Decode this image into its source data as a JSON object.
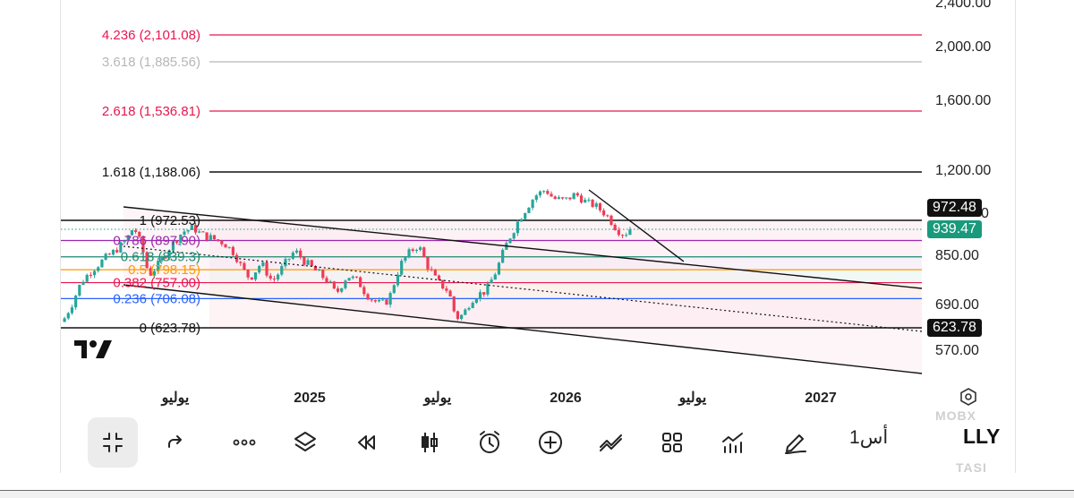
{
  "price_axis": {
    "labels": [
      "2,400.00",
      "2,000.00",
      "1,600.00",
      "1,200.00",
      "850.00",
      "690.00",
      "570.00"
    ],
    "partial_label": "0",
    "current_price": "939.47",
    "high_tag": "972.48",
    "low_tag": "623.78"
  },
  "time_axis": {
    "labels": [
      "يوليو",
      "2025",
      "يوليو",
      "2026",
      "يوليو",
      "2027"
    ]
  },
  "fib_levels": [
    {
      "label": "4.236 (2,101.08)",
      "color": "#e8174f"
    },
    {
      "label": "3.618 (1,885.56)",
      "color": "#b7b7b7"
    },
    {
      "label": "2.618 (1,536.81)",
      "color": "#e8174f"
    },
    {
      "label": "1.618 (1,188.06)",
      "color": "#111111"
    },
    {
      "label": "1 (972.53)",
      "color": "#111111"
    },
    {
      "label": "0.786 (897.90)",
      "color": "#9c27b0"
    },
    {
      "label": "0.618 (839.3)",
      "color": "#1a8a70"
    },
    {
      "label": "0.5 (798.15)",
      "color": "#ff9800"
    },
    {
      "label": "0.382 (757.00)",
      "color": "#e8174f"
    },
    {
      "label": "0.236 (706.08)",
      "color": "#2962ff"
    },
    {
      "label": "0 (623.78)",
      "color": "#111111"
    }
  ],
  "chart_data": {
    "type": "candlestick",
    "symbol": "LLY",
    "interval": "1أس",
    "x": [
      "يوليو",
      "2025",
      "يوليو",
      "2026",
      "يوليو",
      "2027"
    ],
    "ylim": [
      540,
      2400
    ],
    "last_price": 939.47,
    "range_high": 972.48,
    "range_low": 623.78,
    "fibonacci_retracement": [
      {
        "ratio": 4.236,
        "price": 2101.08
      },
      {
        "ratio": 3.618,
        "price": 1885.56
      },
      {
        "ratio": 2.618,
        "price": 1536.81
      },
      {
        "ratio": 1.618,
        "price": 1188.06
      },
      {
        "ratio": 1,
        "price": 972.53
      },
      {
        "ratio": 0.786,
        "price": 897.9
      },
      {
        "ratio": 0.618,
        "price": 839.3
      },
      {
        "ratio": 0.5,
        "price": 798.15
      },
      {
        "ratio": 0.382,
        "price": 757.0
      },
      {
        "ratio": 0.236,
        "price": 706.08
      },
      {
        "ratio": 0,
        "price": 623.78
      }
    ],
    "up_color": "#26a69a",
    "down_color": "#ef3b55"
  },
  "toolbar": {
    "symbol": "LLY",
    "interval": "1أس",
    "watermark_top": "MOBX",
    "watermark_bottom": "TASI"
  }
}
